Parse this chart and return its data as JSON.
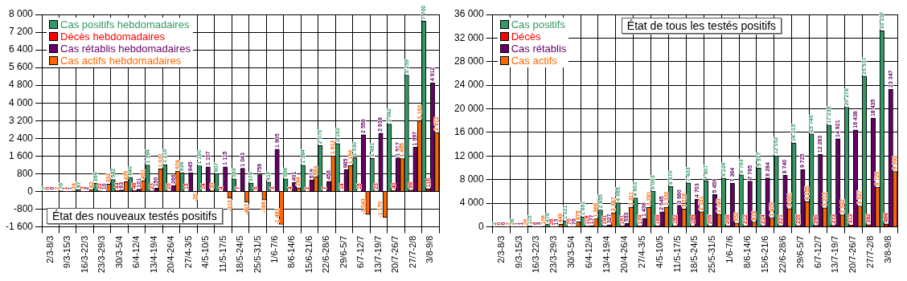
{
  "chart_data": [
    {
      "type": "bar",
      "title": "État des nouveaux testés positifs",
      "categories": [
        "2/3-8/3",
        "9/3-15/3",
        "16/3-22/3",
        "23/3-29/3",
        "30/3-5/4",
        "6/4-12/4",
        "13/4-19/4",
        "20/4-26/4",
        "27/4-3/5",
        "4/5-10/5",
        "11/5-17/5",
        "18/5-24/5",
        "25/5-31/5",
        "1/6-7/6",
        "8/6-14/6",
        "15/6-21/6",
        "22/6-28/6",
        "29/6-5/7",
        "6/7-12/7",
        "13/7-19/7",
        "20/7-26/7",
        "27/7-2/8",
        "3/8-9/8"
      ],
      "series": [
        {
          "name": "Cas positifs hebdomadaires",
          "color": "#339966",
          "values": [
            2,
            26,
            87,
            364,
            542,
            640,
            1194,
            1210,
            838,
            1160,
            807,
            563,
            374,
            417,
            569,
            1184,
            2075,
            2163,
            1530,
            1491,
            3042,
            5259,
            7700
          ]
        },
        {
          "name": "Décès hebdomadaires",
          "color": "#ff0000",
          "values": [
            0,
            1,
            3,
            22,
            44,
            48,
            23,
            20,
            13,
            14,
            4,
            7,
            6,
            3,
            4,
            2,
            7,
            14,
            15,
            23,
            40,
            69,
            116
          ]
        },
        {
          "name": "Cas rétablis hebdomadaires",
          "color": "#660066",
          "values": [
            0,
            1,
            2,
            10,
            63,
            101,
            150,
            266,
            845,
            1107,
            1115,
            1043,
            756,
            1905,
            401,
            519,
            456,
            985,
            2558,
            2638,
            1517,
            1997,
            4912
          ]
        },
        {
          "name": "Cas actifs hebdomadaires",
          "color": "#ff6600",
          "values": [
            2,
            24,
            82,
            332,
            435,
            491,
            1021,
            924,
            -20,
            39,
            -312,
            -487,
            -388,
            -1491,
            164,
            663,
            1612,
            1164,
            -1043,
            -1170,
            1485,
            3193,
            2672
          ]
        }
      ],
      "ylim": [
        -1600,
        8000
      ],
      "yticks": [
        {
          "value": -1600,
          "label": "-1 600"
        },
        {
          "value": -800,
          "label": "-800"
        },
        {
          "value": 0,
          "label": "0"
        },
        {
          "value": 800,
          "label": "800"
        },
        {
          "value": 1600,
          "label": "1 600"
        },
        {
          "value": 2400,
          "label": "2 400"
        },
        {
          "value": 3200,
          "label": "3 200"
        },
        {
          "value": 4000,
          "label": "4 000"
        },
        {
          "value": 4800,
          "label": "4 800"
        },
        {
          "value": 5600,
          "label": "5 600"
        },
        {
          "value": 6400,
          "label": "6 400"
        },
        {
          "value": 7200,
          "label": "7 200"
        },
        {
          "value": 8000,
          "label": "8 000"
        }
      ],
      "grid": true,
      "legend": "top left",
      "data_labels": true
    },
    {
      "type": "bar",
      "title": "État de tous les testés positifs",
      "categories": [
        "2/3-8/3",
        "9/3-15/3",
        "16/3-22/3",
        "23/3-29/3",
        "30/3-5/4",
        "6/4-12/4",
        "13/4-19/4",
        "20/4-26/4",
        "27/4-3/5",
        "4/5-10/5",
        "11/5-17/5",
        "18/5-24/5",
        "25/5-31/5",
        "1/6-7/6",
        "8/6-14/6",
        "15/6-21/6",
        "22/6-28/6",
        "29/6-5/7",
        "6/7-12/7",
        "13/7-19/7",
        "20/7-26/7",
        "27/7-2/8",
        "3/8-9/8"
      ],
      "series": [
        {
          "name": "Cas positifs",
          "color": "#339966",
          "values": [
            2,
            28,
            115,
            479,
            1021,
            1661,
            2855,
            4065,
            4903,
            6063,
            6870,
            7433,
            7807,
            8224,
            8793,
            9977,
            12052,
            14215,
            15745,
            17236,
            20278,
            25537,
            33237
          ]
        },
        {
          "name": "Décès",
          "color": "#ff0000",
          "values": [
            0,
            1,
            4,
            26,
            70,
            118,
            141,
            161,
            174,
            188,
            192,
            199,
            205,
            208,
            212,
            214,
            221,
            235,
            250,
            273,
            313,
            382,
            498
          ]
        },
        {
          "name": "Cas rétablis",
          "color": "#660066",
          "values": [
            0,
            1,
            3,
            13,
            76,
            177,
            327,
            593,
            1438,
            2545,
            3660,
            4703,
            5459,
            7364,
            7765,
            8284,
            8740,
            9725,
            12283,
            14921,
            16438,
            18435,
            23347
          ]
        },
        {
          "name": "Cas actifs",
          "color": "#ff6600",
          "values": [
            2,
            26,
            108,
            440,
            875,
            1366,
            2387,
            3311,
            3291,
            3330,
            3018,
            2531,
            2143,
            652,
            816,
            1479,
            3091,
            4255,
            3212,
            2042,
            3527,
            6720,
            9392
          ]
        }
      ],
      "ylim": [
        0,
        36000
      ],
      "yticks": [
        {
          "value": 0,
          "label": "0"
        },
        {
          "value": 4000,
          "label": "4 000"
        },
        {
          "value": 8000,
          "label": "8 000"
        },
        {
          "value": 12000,
          "label": "12 000"
        },
        {
          "value": 16000,
          "label": "16 000"
        },
        {
          "value": 20000,
          "label": "20 000"
        },
        {
          "value": 24000,
          "label": "24 000"
        },
        {
          "value": 28000,
          "label": "28 000"
        },
        {
          "value": 32000,
          "label": "32 000"
        },
        {
          "value": 36000,
          "label": "36 000"
        }
      ],
      "grid": true,
      "legend": "top left",
      "data_labels": true
    }
  ]
}
